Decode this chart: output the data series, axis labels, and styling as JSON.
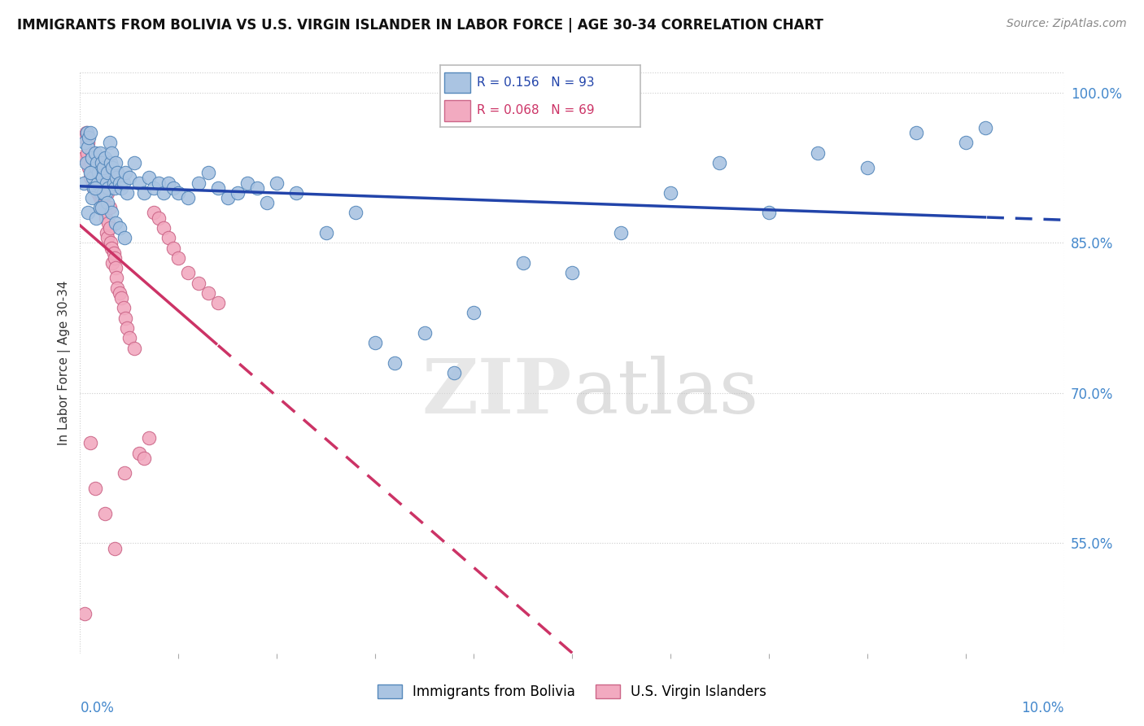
{
  "title": "IMMIGRANTS FROM BOLIVIA VS U.S. VIRGIN ISLANDER IN LABOR FORCE | AGE 30-34 CORRELATION CHART",
  "source": "Source: ZipAtlas.com",
  "ylabel": "In Labor Force | Age 30-34",
  "xlim": [
    0.0,
    10.0
  ],
  "ylim": [
    44.0,
    102.0
  ],
  "yticks": [
    55.0,
    70.0,
    85.0,
    100.0
  ],
  "ytick_labels": [
    "55.0%",
    "70.0%",
    "85.0%",
    "100.0%"
  ],
  "bolivia_color": "#aac4e2",
  "virgin_color": "#f2aac0",
  "bolivia_edge": "#5588bb",
  "virgin_edge": "#cc6688",
  "trendline_bolivia_color": "#2244aa",
  "trendline_virgin_color": "#cc3366",
  "R_bolivia": 0.156,
  "N_bolivia": 93,
  "R_virgin": 0.068,
  "N_virgin": 69,
  "watermark": "ZIPatlas",
  "bolivia_x": [
    0.04,
    0.05,
    0.06,
    0.07,
    0.08,
    0.09,
    0.1,
    0.11,
    0.12,
    0.13,
    0.14,
    0.15,
    0.16,
    0.17,
    0.18,
    0.19,
    0.2,
    0.21,
    0.22,
    0.23,
    0.24,
    0.25,
    0.26,
    0.27,
    0.28,
    0.29,
    0.3,
    0.31,
    0.32,
    0.33,
    0.34,
    0.35,
    0.36,
    0.37,
    0.38,
    0.4,
    0.42,
    0.44,
    0.46,
    0.48,
    0.5,
    0.55,
    0.6,
    0.65,
    0.7,
    0.75,
    0.8,
    0.85,
    0.9,
    0.95,
    1.0,
    1.1,
    1.2,
    1.3,
    1.4,
    1.5,
    1.6,
    1.7,
    1.8,
    1.9,
    2.0,
    2.2,
    2.5,
    2.8,
    3.0,
    3.2,
    3.5,
    3.8,
    4.0,
    4.5,
    5.0,
    5.5,
    6.0,
    6.5,
    7.0,
    7.5,
    8.0,
    8.5,
    9.0,
    9.2,
    0.08,
    0.12,
    0.16,
    0.2,
    0.24,
    0.28,
    0.32,
    0.36,
    0.4,
    0.45,
    0.1,
    0.15,
    0.22
  ],
  "bolivia_y": [
    91.0,
    95.0,
    93.0,
    96.0,
    94.5,
    95.5,
    96.0,
    92.0,
    93.5,
    91.5,
    90.5,
    94.0,
    92.5,
    93.0,
    91.0,
    92.0,
    94.0,
    90.0,
    93.0,
    91.5,
    92.5,
    93.5,
    90.0,
    91.0,
    92.0,
    90.5,
    95.0,
    93.0,
    94.0,
    92.5,
    91.0,
    90.5,
    93.0,
    91.5,
    92.0,
    91.0,
    90.5,
    91.0,
    92.0,
    90.0,
    91.5,
    93.0,
    91.0,
    90.0,
    91.5,
    90.5,
    91.0,
    90.0,
    91.0,
    90.5,
    90.0,
    89.5,
    91.0,
    92.0,
    90.5,
    89.5,
    90.0,
    91.0,
    90.5,
    89.0,
    91.0,
    90.0,
    86.0,
    88.0,
    75.0,
    73.0,
    76.0,
    72.0,
    78.0,
    83.0,
    82.0,
    86.0,
    90.0,
    93.0,
    88.0,
    94.0,
    92.5,
    96.0,
    95.0,
    96.5,
    88.0,
    89.5,
    87.5,
    88.5,
    90.0,
    89.0,
    88.0,
    87.0,
    86.5,
    85.5,
    92.0,
    90.5,
    88.5
  ],
  "virgin_x": [
    0.04,
    0.05,
    0.06,
    0.07,
    0.08,
    0.09,
    0.1,
    0.11,
    0.12,
    0.13,
    0.14,
    0.15,
    0.16,
    0.17,
    0.18,
    0.19,
    0.2,
    0.21,
    0.22,
    0.23,
    0.24,
    0.25,
    0.26,
    0.27,
    0.28,
    0.29,
    0.3,
    0.31,
    0.32,
    0.33,
    0.34,
    0.35,
    0.36,
    0.37,
    0.38,
    0.4,
    0.42,
    0.44,
    0.46,
    0.48,
    0.5,
    0.55,
    0.6,
    0.65,
    0.7,
    0.75,
    0.8,
    0.85,
    0.9,
    0.95,
    1.0,
    1.1,
    1.2,
    1.3,
    1.4,
    0.05,
    0.08,
    0.12,
    0.16,
    0.2,
    0.24,
    0.28,
    0.1,
    0.15,
    0.25,
    0.35,
    0.45,
    0.22,
    0.3
  ],
  "virgin_y": [
    93.5,
    95.5,
    96.0,
    94.0,
    93.0,
    92.5,
    91.5,
    93.0,
    92.0,
    91.0,
    90.5,
    92.0,
    91.5,
    92.5,
    90.0,
    91.0,
    89.5,
    90.0,
    88.5,
    90.0,
    89.0,
    88.0,
    87.5,
    86.0,
    85.5,
    87.0,
    86.5,
    85.0,
    84.5,
    83.0,
    84.0,
    83.5,
    82.5,
    81.5,
    80.5,
    80.0,
    79.5,
    78.5,
    77.5,
    76.5,
    75.5,
    74.5,
    64.0,
    63.5,
    65.5,
    88.0,
    87.5,
    86.5,
    85.5,
    84.5,
    83.5,
    82.0,
    81.0,
    80.0,
    79.0,
    48.0,
    95.0,
    94.0,
    93.0,
    92.0,
    91.0,
    90.0,
    65.0,
    60.5,
    58.0,
    54.5,
    62.0,
    89.5,
    88.5
  ]
}
